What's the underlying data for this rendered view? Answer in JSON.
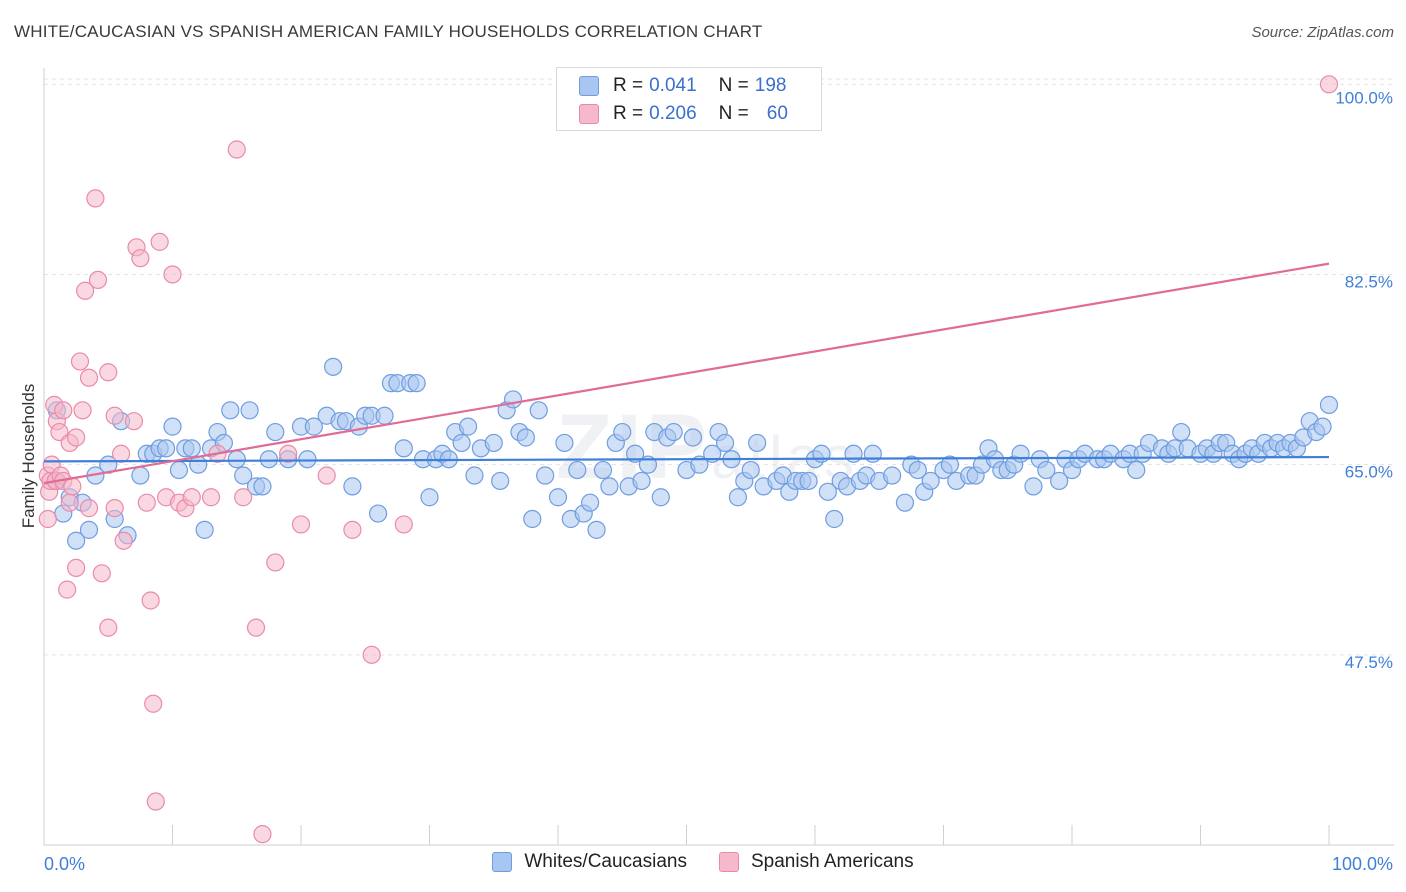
{
  "header": {
    "title": "WHITE/CAUCASIAN VS SPANISH AMERICAN FAMILY HOUSEHOLDS CORRELATION CHART",
    "source": "Source: ZipAtlas.com"
  },
  "watermark": {
    "main": "ZIP",
    "sub": "atlas"
  },
  "legend": {
    "rows": [
      {
        "r_label": "R =",
        "r_value": "0.041",
        "n_label": "N =",
        "n_value": "198",
        "color": "#a9c6f0"
      },
      {
        "r_label": "R =",
        "r_value": "0.206",
        "n_label": "N =",
        "n_value": "60",
        "color": "#f6b8cb"
      }
    ]
  },
  "bottom_legend": [
    {
      "label": "Whites/Caucasians",
      "color": "#a9c6f0"
    },
    {
      "label": "Spanish Americans",
      "color": "#f6b8cb"
    }
  ],
  "chart_data": {
    "type": "scatter",
    "title": "WHITE/CAUCASIAN VS SPANISH AMERICAN FAMILY HOUSEHOLDS CORRELATION CHART",
    "xlabel": "",
    "ylabel": "Family Households",
    "xlim": [
      0,
      100
    ],
    "ylim": [
      30,
      101.5
    ],
    "x_tick_labels": {
      "left": "0.0%",
      "right": "100.0%"
    },
    "y_ticks": [
      {
        "value": 100,
        "label": "100.0%"
      },
      {
        "value": 82.5,
        "label": "82.5%"
      },
      {
        "value": 65,
        "label": "65.0%"
      },
      {
        "value": 47.5,
        "label": "47.5%"
      }
    ],
    "colors": {
      "blue_point": "#a9c6f0",
      "blue_edge": "#6f9de0",
      "blue_line": "#3f7fd8",
      "pink_point": "#f6b8cb",
      "pink_edge": "#ea8aab",
      "pink_line": "#e06b95"
    },
    "series": [
      {
        "name": "Whites/Caucasians",
        "trend": {
          "x0": 0,
          "y0": 65.3,
          "x1": 100,
          "y1": 65.7
        },
        "points": [
          [
            1,
            70
          ],
          [
            1,
            63.5
          ],
          [
            1.5,
            60.5
          ],
          [
            2,
            62
          ],
          [
            2.5,
            58
          ],
          [
            3,
            61.5
          ],
          [
            3.5,
            59
          ],
          [
            4,
            64
          ],
          [
            5,
            65
          ],
          [
            5.5,
            60
          ],
          [
            6,
            69
          ],
          [
            6.5,
            58.5
          ],
          [
            7.5,
            64
          ],
          [
            8,
            66
          ],
          [
            8.5,
            66
          ],
          [
            9,
            66.5
          ],
          [
            9.5,
            66.5
          ],
          [
            10,
            68.5
          ],
          [
            10.5,
            64.5
          ],
          [
            11,
            66.5
          ],
          [
            11.5,
            66.5
          ],
          [
            12,
            65
          ],
          [
            12.5,
            59
          ],
          [
            13,
            66.5
          ],
          [
            13.5,
            68
          ],
          [
            14,
            67
          ],
          [
            14.5,
            70
          ],
          [
            15,
            65.5
          ],
          [
            15.5,
            64
          ],
          [
            16,
            70
          ],
          [
            16.5,
            63
          ],
          [
            17,
            63
          ],
          [
            17.5,
            65.5
          ],
          [
            18,
            68
          ],
          [
            19,
            65.5
          ],
          [
            20,
            68.5
          ],
          [
            20.5,
            65.5
          ],
          [
            21,
            68.5
          ],
          [
            22,
            69.5
          ],
          [
            22.5,
            74
          ],
          [
            23,
            69
          ],
          [
            23.5,
            69
          ],
          [
            24,
            63
          ],
          [
            24.5,
            68.5
          ],
          [
            25,
            69.5
          ],
          [
            25.5,
            69.5
          ],
          [
            26,
            60.5
          ],
          [
            26.5,
            69.5
          ],
          [
            27,
            72.5
          ],
          [
            27.5,
            72.5
          ],
          [
            28,
            66.5
          ],
          [
            28.5,
            72.5
          ],
          [
            29,
            72.5
          ],
          [
            29.5,
            65.5
          ],
          [
            30,
            62
          ],
          [
            30.5,
            65.5
          ],
          [
            31,
            66
          ],
          [
            31.5,
            65.5
          ],
          [
            32,
            68
          ],
          [
            32.5,
            67
          ],
          [
            33,
            68.5
          ],
          [
            33.5,
            64
          ],
          [
            34,
            66.5
          ],
          [
            35,
            67
          ],
          [
            35.5,
            63.5
          ],
          [
            36,
            70
          ],
          [
            36.5,
            71
          ],
          [
            37,
            68
          ],
          [
            37.5,
            67.5
          ],
          [
            38,
            60
          ],
          [
            38.5,
            70
          ],
          [
            39,
            64
          ],
          [
            40,
            62
          ],
          [
            40.5,
            67
          ],
          [
            41,
            60
          ],
          [
            41.5,
            64.5
          ],
          [
            42,
            60.5
          ],
          [
            42.5,
            61.5
          ],
          [
            43,
            59
          ],
          [
            43.5,
            64.5
          ],
          [
            44,
            63
          ],
          [
            44.5,
            67
          ],
          [
            45,
            68
          ],
          [
            45.5,
            63
          ],
          [
            46,
            66
          ],
          [
            46.5,
            63.5
          ],
          [
            47,
            65
          ],
          [
            47.5,
            68
          ],
          [
            48,
            62
          ],
          [
            48.5,
            67.5
          ],
          [
            49,
            68
          ],
          [
            50,
            64.5
          ],
          [
            50.5,
            67.5
          ],
          [
            51,
            65
          ],
          [
            52,
            66
          ],
          [
            52.5,
            68
          ],
          [
            53,
            67
          ],
          [
            53.5,
            65.5
          ],
          [
            54,
            62
          ],
          [
            54.5,
            63.5
          ],
          [
            55,
            64.5
          ],
          [
            55.5,
            67
          ],
          [
            56,
            63
          ],
          [
            57,
            63.5
          ],
          [
            57.5,
            64
          ],
          [
            58,
            62.5
          ],
          [
            58.5,
            63.5
          ],
          [
            59,
            63.5
          ],
          [
            59.5,
            63.5
          ],
          [
            60,
            65.5
          ],
          [
            60.5,
            66
          ],
          [
            61,
            62.5
          ],
          [
            61.5,
            60
          ],
          [
            62,
            63.5
          ],
          [
            62.5,
            63
          ],
          [
            63,
            66
          ],
          [
            63.5,
            63.5
          ],
          [
            64,
            64
          ],
          [
            64.5,
            66
          ],
          [
            65,
            63.5
          ],
          [
            66,
            64
          ],
          [
            67,
            61.5
          ],
          [
            67.5,
            65
          ],
          [
            68,
            64.5
          ],
          [
            68.5,
            62.5
          ],
          [
            69,
            63.5
          ],
          [
            70,
            64.5
          ],
          [
            70.5,
            65
          ],
          [
            71,
            63.5
          ],
          [
            72,
            64
          ],
          [
            72.5,
            64
          ],
          [
            73,
            65
          ],
          [
            73.5,
            66.5
          ],
          [
            74,
            65.5
          ],
          [
            74.5,
            64.5
          ],
          [
            75,
            64.5
          ],
          [
            75.5,
            65
          ],
          [
            76,
            66
          ],
          [
            77,
            63
          ],
          [
            77.5,
            65.5
          ],
          [
            78,
            64.5
          ],
          [
            79,
            63.5
          ],
          [
            79.5,
            65.5
          ],
          [
            80,
            64.5
          ],
          [
            80.5,
            65.5
          ],
          [
            81,
            66
          ],
          [
            82,
            65.5
          ],
          [
            82.5,
            65.5
          ],
          [
            83,
            66
          ],
          [
            84,
            65.5
          ],
          [
            84.5,
            66
          ],
          [
            85,
            64.5
          ],
          [
            85.5,
            66
          ],
          [
            86,
            67
          ],
          [
            87,
            66.5
          ],
          [
            87.5,
            66
          ],
          [
            88,
            66.5
          ],
          [
            88.5,
            68
          ],
          [
            89,
            66.5
          ],
          [
            90,
            66
          ],
          [
            90.5,
            66.5
          ],
          [
            91,
            66
          ],
          [
            91.5,
            67
          ],
          [
            92,
            67
          ],
          [
            92.5,
            66
          ],
          [
            93,
            65.5
          ],
          [
            93.5,
            66
          ],
          [
            94,
            66.5
          ],
          [
            94.5,
            66
          ],
          [
            95,
            67
          ],
          [
            95.5,
            66.5
          ],
          [
            96,
            67
          ],
          [
            96.5,
            66.5
          ],
          [
            97,
            67
          ],
          [
            97.5,
            66.5
          ],
          [
            98,
            67.5
          ],
          [
            98.5,
            69
          ],
          [
            99,
            68
          ],
          [
            99.5,
            68.5
          ],
          [
            100,
            70.5
          ]
        ]
      },
      {
        "name": "Spanish Americans",
        "trend": {
          "x0": 0,
          "y0": 63.3,
          "x1": 100,
          "y1": 83.5
        },
        "points": [
          [
            0.3,
            64
          ],
          [
            0.3,
            60
          ],
          [
            0.4,
            62.5
          ],
          [
            0.5,
            63.5
          ],
          [
            0.6,
            65
          ],
          [
            0.8,
            70.5
          ],
          [
            0.9,
            63.5
          ],
          [
            1,
            69
          ],
          [
            1.2,
            68
          ],
          [
            1.3,
            64
          ],
          [
            1.5,
            70
          ],
          [
            1.5,
            63.5
          ],
          [
            1.8,
            53.5
          ],
          [
            2,
            67
          ],
          [
            2,
            61.5
          ],
          [
            2.2,
            63
          ],
          [
            2.5,
            67.5
          ],
          [
            2.5,
            55.5
          ],
          [
            2.8,
            74.5
          ],
          [
            3,
            70
          ],
          [
            3.2,
            81
          ],
          [
            3.5,
            61
          ],
          [
            3.5,
            73
          ],
          [
            4,
            89.5
          ],
          [
            4.2,
            82
          ],
          [
            4.5,
            55
          ],
          [
            5,
            73.5
          ],
          [
            5,
            50
          ],
          [
            5.5,
            69.5
          ],
          [
            5.5,
            61
          ],
          [
            6,
            66
          ],
          [
            6.2,
            58
          ],
          [
            7,
            69
          ],
          [
            7.2,
            85
          ],
          [
            7.5,
            84
          ],
          [
            8,
            61.5
          ],
          [
            8.3,
            52.5
          ],
          [
            8.5,
            43
          ],
          [
            8.7,
            34
          ],
          [
            9,
            85.5
          ],
          [
            9.5,
            62
          ],
          [
            10,
            82.5
          ],
          [
            10.5,
            61.5
          ],
          [
            11,
            61
          ],
          [
            11.5,
            62
          ],
          [
            13,
            62
          ],
          [
            13.5,
            66
          ],
          [
            15,
            94
          ],
          [
            15.5,
            62
          ],
          [
            16.5,
            50
          ],
          [
            17,
            31
          ],
          [
            18,
            56
          ],
          [
            19,
            66
          ],
          [
            20,
            59.5
          ],
          [
            22,
            64
          ],
          [
            24,
            59
          ],
          [
            25.5,
            47.5
          ],
          [
            28,
            59.5
          ],
          [
            100,
            100
          ]
        ]
      }
    ]
  }
}
